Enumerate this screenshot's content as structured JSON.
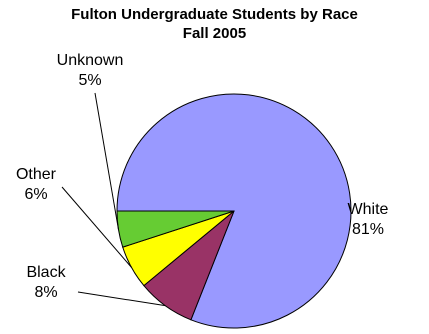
{
  "chart_data": {
    "type": "pie",
    "title": "Fulton Undergraduate Students by Race",
    "subtitle": "Fall 2005",
    "slices": [
      {
        "label": "White",
        "value": 81,
        "display": "81%",
        "color": "#9999ff"
      },
      {
        "label": "Black",
        "value": 8,
        "display": "8%",
        "color": "#993366"
      },
      {
        "label": "Other",
        "value": 6,
        "display": "6%",
        "color": "#ffff00"
      },
      {
        "label": "Unknown",
        "value": 5,
        "display": "5%",
        "color": "#66cc33"
      }
    ],
    "legend": "none"
  }
}
